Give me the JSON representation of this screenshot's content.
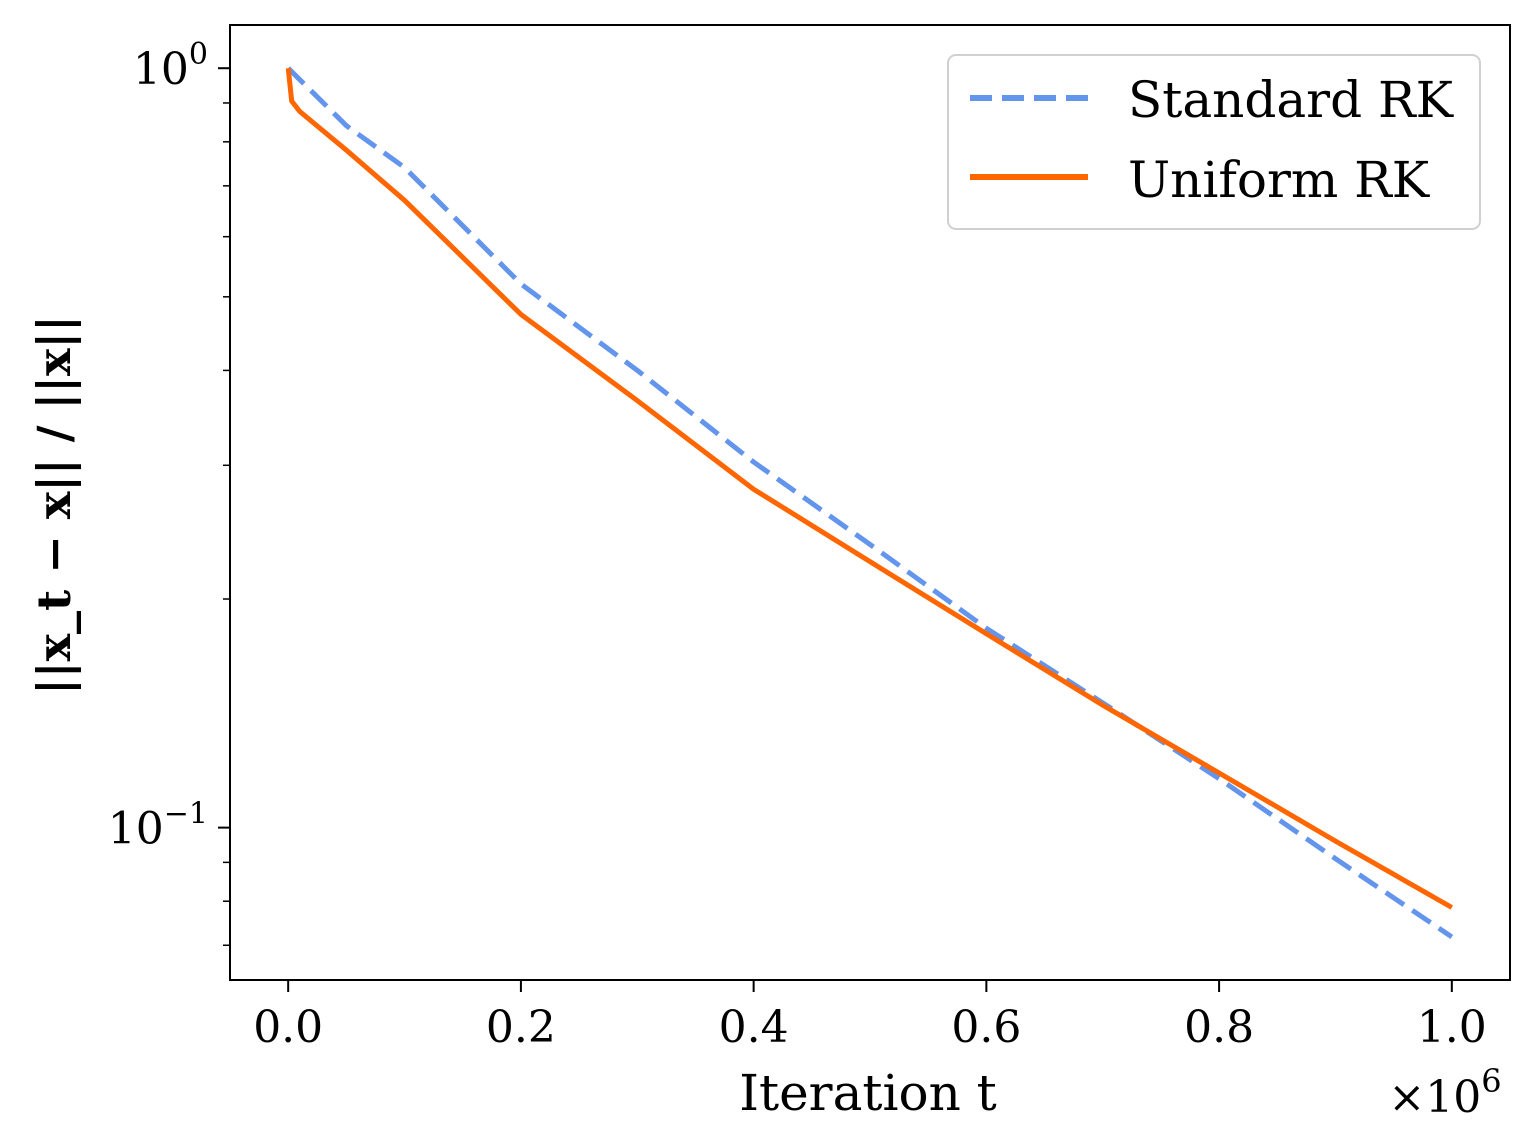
{
  "chart_data": {
    "type": "line",
    "title": "",
    "xlabel": "Iteration t",
    "ylabel": "||x_t − x|| / ||x||",
    "x_multiplier_label": "×10^6",
    "xlim": [
      -0.05,
      1.05
    ],
    "ylim": [
      0.063,
      1.14
    ],
    "yscale": "log",
    "grid": false,
    "legend_position": "top-right",
    "x_ticks": [
      0.0,
      0.2,
      0.4,
      0.6,
      0.8,
      1.0
    ],
    "x_tick_labels": [
      "0.0",
      "0.2",
      "0.4",
      "0.6",
      "0.8",
      "1.0"
    ],
    "y_ticks": [
      1,
      0.1
    ],
    "y_tick_labels": [
      {
        "base": "10",
        "exp": "0"
      },
      {
        "base": "10",
        "exp": "−1"
      }
    ],
    "series": [
      {
        "name": "Standard RK",
        "color": "#6495ED",
        "style": "dashed",
        "x": [
          0.0,
          0.05,
          0.1,
          0.2,
          0.3,
          0.4,
          0.5,
          0.6,
          0.7,
          0.8,
          0.9,
          1.0
        ],
        "y": [
          1.0,
          0.84,
          0.74,
          0.52,
          0.4,
          0.303,
          0.236,
          0.183,
          0.146,
          0.116,
          0.091,
          0.0718
        ]
      },
      {
        "name": "Uniform RK",
        "color": "#FF6600",
        "style": "solid",
        "x": [
          0.0,
          0.003,
          0.01,
          0.05,
          0.1,
          0.2,
          0.3,
          0.4,
          0.5,
          0.6,
          0.7,
          0.8,
          0.9,
          1.0
        ],
        "y": [
          1.0,
          0.905,
          0.877,
          0.78,
          0.67,
          0.474,
          0.365,
          0.279,
          0.224,
          0.18,
          0.145,
          0.118,
          0.096,
          0.0785
        ]
      }
    ]
  }
}
